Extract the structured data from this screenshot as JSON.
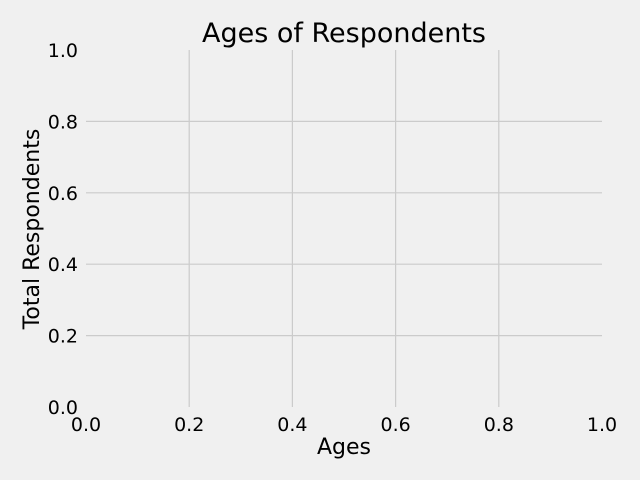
{
  "colors": {
    "background": "#f0f0f0",
    "grid": "#cbcbcb",
    "text": "#000000"
  },
  "chart_data": {
    "type": "line",
    "title": "Ages of Respondents",
    "xlabel": "Ages",
    "ylabel": "Total Respondents",
    "xlim": [
      0.0,
      1.0
    ],
    "ylim": [
      0.0,
      1.0
    ],
    "xticks": [
      0.0,
      0.2,
      0.4,
      0.6,
      0.8,
      1.0
    ],
    "xtick_labels": [
      "0.0",
      "0.2",
      "0.4",
      "0.6",
      "0.8",
      "1.0"
    ],
    "yticks": [
      0.0,
      0.2,
      0.4,
      0.6,
      0.8,
      1.0
    ],
    "ytick_labels": [
      "0.0",
      "0.2",
      "0.4",
      "0.6",
      "0.8",
      "1.0"
    ],
    "grid": true,
    "series": []
  }
}
